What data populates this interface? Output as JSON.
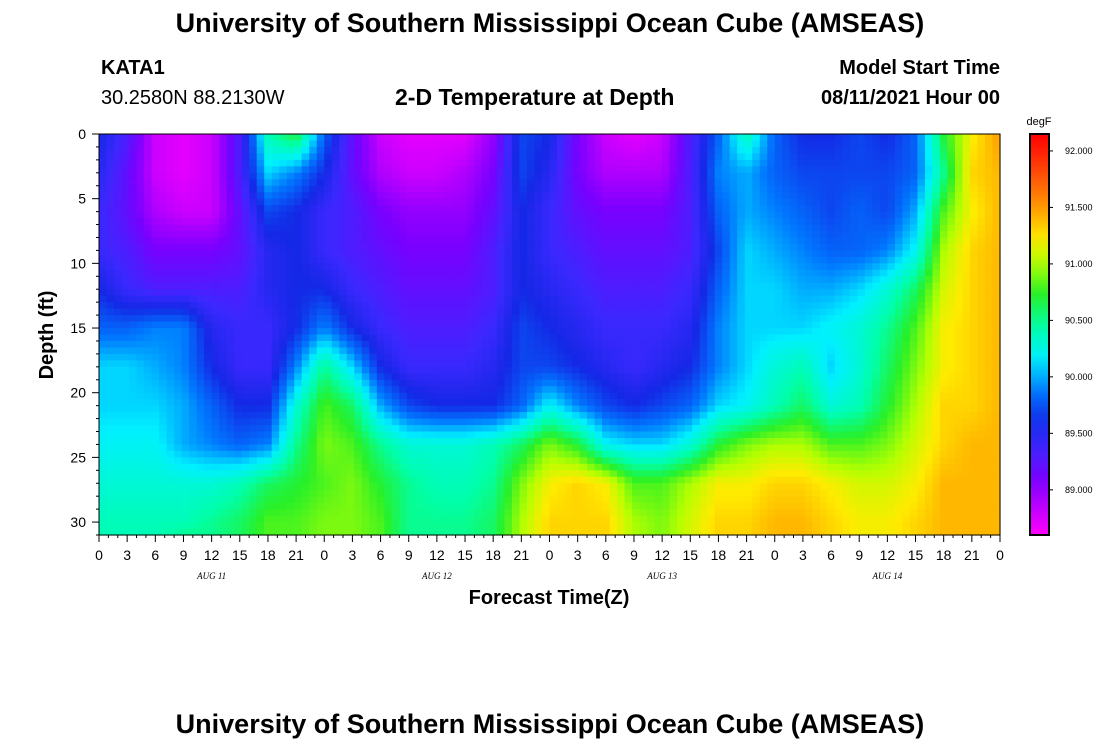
{
  "header": {
    "title": "University of Southern Mississippi Ocean Cube (AMSEAS)",
    "station": "KATA1",
    "coords": "30.2580N  88.2130W",
    "plot_title": "2-D Temperature at Depth",
    "model_start_label": "Model Start Time",
    "model_start_value": "08/11/2021 Hour 00"
  },
  "footer": {
    "title": "University of Southern Mississippi Ocean Cube (AMSEAS)"
  },
  "chart_data": {
    "type": "heatmap",
    "title": "2-D Temperature at Depth",
    "xlabel": "Forecast Time(Z)",
    "ylabel": "Depth (ft)",
    "x_tick_labels": [
      "0",
      "3",
      "6",
      "9",
      "12",
      "15",
      "18",
      "21",
      "0",
      "3",
      "6",
      "9",
      "12",
      "15",
      "18",
      "21",
      "0",
      "3",
      "6",
      "9",
      "12",
      "15",
      "18",
      "21",
      "0",
      "3",
      "6",
      "9",
      "12",
      "15",
      "18",
      "21",
      "0"
    ],
    "day_labels": [
      "AUG 11",
      "AUG 12",
      "AUG 13",
      "AUG 14"
    ],
    "xlim_hours": [
      0,
      96
    ],
    "y_ticks": [
      0,
      5,
      10,
      15,
      20,
      25,
      30
    ],
    "ylim": [
      0,
      31
    ],
    "y_inverted": true,
    "colorbar": {
      "units": "degF",
      "ticks": [
        "92.000",
        "91.500",
        "91.000",
        "90.500",
        "90.000",
        "89.500",
        "89.000"
      ],
      "tick_values": [
        92.0,
        91.5,
        91.0,
        90.5,
        90.0,
        89.5,
        89.0
      ],
      "range": [
        88.6,
        92.15
      ]
    },
    "x_hours": [
      0,
      3,
      6,
      9,
      12,
      15,
      18,
      21,
      24,
      27,
      30,
      33,
      36,
      39,
      42,
      45,
      48,
      51,
      54,
      57,
      60,
      63,
      66,
      69,
      72,
      75,
      78,
      81,
      84,
      87,
      90,
      93,
      96
    ],
    "depths": [
      0,
      3,
      6,
      9,
      12,
      15,
      18,
      21,
      24,
      27,
      30,
      31
    ],
    "values": [
      [
        89.6,
        89.3,
        88.8,
        88.7,
        88.8,
        89.3,
        90.4,
        90.7,
        89.8,
        89.2,
        88.8,
        88.7,
        88.7,
        88.7,
        89.0,
        89.7,
        89.6,
        89.1,
        88.8,
        88.7,
        88.8,
        89.3,
        89.8,
        90.4,
        89.8,
        89.6,
        89.6,
        89.7,
        89.6,
        89.8,
        90.7,
        91.2,
        91.5
      ],
      [
        89.5,
        89.2,
        88.8,
        88.7,
        88.8,
        89.3,
        90.1,
        89.9,
        89.6,
        89.2,
        88.9,
        88.8,
        88.8,
        88.9,
        89.1,
        89.7,
        89.5,
        89.1,
        88.9,
        88.9,
        88.9,
        89.3,
        89.9,
        90.0,
        89.8,
        89.7,
        89.7,
        89.7,
        89.7,
        89.8,
        90.5,
        91.3,
        91.4
      ],
      [
        89.4,
        89.2,
        88.9,
        88.8,
        88.8,
        89.2,
        89.7,
        89.6,
        89.4,
        89.3,
        89.1,
        89.0,
        89.0,
        89.0,
        89.2,
        89.6,
        89.4,
        89.2,
        89.1,
        89.1,
        89.1,
        89.3,
        89.8,
        90.0,
        89.9,
        89.8,
        89.7,
        89.8,
        89.7,
        90.0,
        90.8,
        91.2,
        91.4
      ],
      [
        89.4,
        89.3,
        89.1,
        89.1,
        89.1,
        89.2,
        89.5,
        89.6,
        89.4,
        89.3,
        89.2,
        89.1,
        89.1,
        89.1,
        89.3,
        89.6,
        89.4,
        89.3,
        89.2,
        89.2,
        89.2,
        89.3,
        89.7,
        90.1,
        90.0,
        89.9,
        89.8,
        89.8,
        89.9,
        90.2,
        91.0,
        91.3,
        91.4
      ],
      [
        89.6,
        89.4,
        89.3,
        89.3,
        89.3,
        89.3,
        89.5,
        89.6,
        89.6,
        89.4,
        89.3,
        89.2,
        89.2,
        89.2,
        89.3,
        89.6,
        89.5,
        89.4,
        89.3,
        89.3,
        89.3,
        89.4,
        89.8,
        90.1,
        90.1,
        90.0,
        90.0,
        90.1,
        90.3,
        90.6,
        91.1,
        91.3,
        91.4
      ],
      [
        89.8,
        89.8,
        89.9,
        89.9,
        89.5,
        89.4,
        89.4,
        89.6,
        89.9,
        89.6,
        89.4,
        89.3,
        89.3,
        89.3,
        89.4,
        89.7,
        89.6,
        89.5,
        89.4,
        89.4,
        89.4,
        89.5,
        89.9,
        90.1,
        90.1,
        90.1,
        90.2,
        90.3,
        90.5,
        90.8,
        91.2,
        91.3,
        91.4
      ],
      [
        90.1,
        90.1,
        90.0,
        89.9,
        89.6,
        89.4,
        89.4,
        89.9,
        90.5,
        90.1,
        89.6,
        89.4,
        89.4,
        89.4,
        89.5,
        89.7,
        89.7,
        89.6,
        89.5,
        89.4,
        89.5,
        89.6,
        89.9,
        90.1,
        90.3,
        90.4,
        90.1,
        90.3,
        90.6,
        90.9,
        91.2,
        91.3,
        91.4
      ],
      [
        90.1,
        90.1,
        90.1,
        90.0,
        89.8,
        89.6,
        89.6,
        90.3,
        90.8,
        90.6,
        90.0,
        89.7,
        89.6,
        89.6,
        89.6,
        89.8,
        90.2,
        89.9,
        89.7,
        89.6,
        89.7,
        89.8,
        90.1,
        90.2,
        90.4,
        90.6,
        90.3,
        90.4,
        90.7,
        91.0,
        91.3,
        91.3,
        91.4
      ],
      [
        90.2,
        90.2,
        90.2,
        90.0,
        89.9,
        89.8,
        89.9,
        90.5,
        90.9,
        90.8,
        90.5,
        90.3,
        90.3,
        90.3,
        90.4,
        90.6,
        90.9,
        90.7,
        90.2,
        90.1,
        90.1,
        90.3,
        90.7,
        90.9,
        91.0,
        91.0,
        90.8,
        90.8,
        90.9,
        91.1,
        91.3,
        91.4,
        91.4
      ],
      [
        90.3,
        90.3,
        90.3,
        90.3,
        90.3,
        90.4,
        90.6,
        90.7,
        90.8,
        90.9,
        90.7,
        90.5,
        90.4,
        90.4,
        90.5,
        90.9,
        91.2,
        91.3,
        91.2,
        90.8,
        90.8,
        91.0,
        91.2,
        91.2,
        91.3,
        91.3,
        91.2,
        91.1,
        91.1,
        91.2,
        91.4,
        91.4,
        91.4
      ],
      [
        90.4,
        90.4,
        90.4,
        90.4,
        90.5,
        90.6,
        90.8,
        90.8,
        90.9,
        90.9,
        90.8,
        90.5,
        90.5,
        90.5,
        90.6,
        91.0,
        91.3,
        91.3,
        91.3,
        91.0,
        90.9,
        91.1,
        91.3,
        91.3,
        91.4,
        91.4,
        91.3,
        91.2,
        91.2,
        91.3,
        91.4,
        91.4,
        91.4
      ],
      [
        90.4,
        90.4,
        90.4,
        90.5,
        90.5,
        90.6,
        90.8,
        90.8,
        90.9,
        90.9,
        90.8,
        90.5,
        90.5,
        90.5,
        90.6,
        91.0,
        91.3,
        91.3,
        91.3,
        91.0,
        90.9,
        91.1,
        91.3,
        91.3,
        91.4,
        91.4,
        91.3,
        91.2,
        91.2,
        91.3,
        91.4,
        91.4,
        91.4
      ]
    ]
  }
}
